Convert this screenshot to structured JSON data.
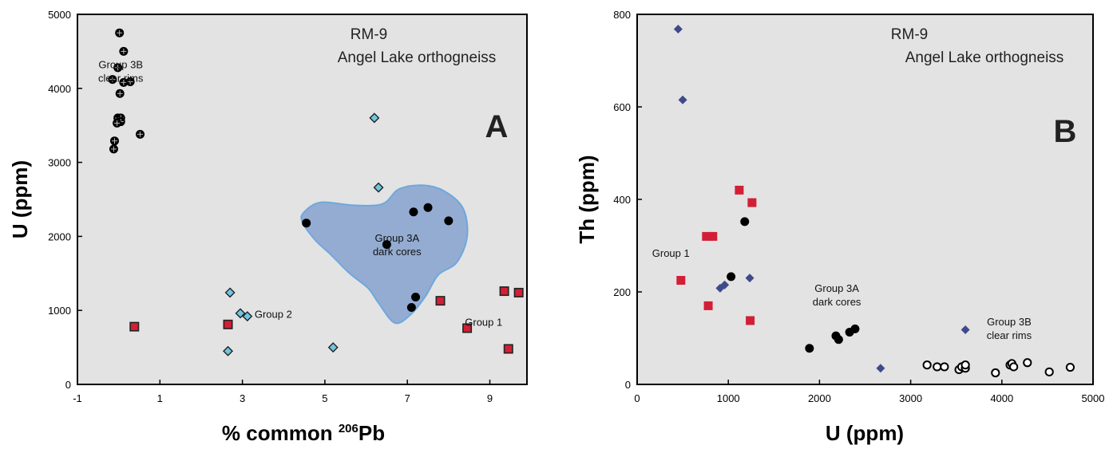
{
  "colors": {
    "plot_background": "#e3e3e3",
    "group1": "#d21f35",
    "group2_A": "#6fc6e2",
    "group2_B": "#404a8a",
    "group3": "#000000",
    "group3a_field": "#7e9ccd"
  },
  "chart_data": [
    {
      "panel": "A",
      "type": "scatter",
      "title": "RM-9",
      "subtitle": "Angel Lake orthogneiss",
      "panel_letter": "A",
      "xlabel": "% common ²⁰⁶Pb",
      "ylabel": "U (ppm)",
      "xlim": [
        -1,
        9.9
      ],
      "ylim": [
        0,
        5000
      ],
      "xticks": [
        -1,
        1,
        3,
        5,
        7,
        9
      ],
      "yticks": [
        0,
        1000,
        2000,
        3000,
        4000,
        5000
      ],
      "grid": false,
      "annotations": [
        {
          "lines": [
            "Group 3B",
            "clear rims"
          ],
          "x": 0.05,
          "y": 4270
        },
        {
          "lines": [
            "Group 2"
          ],
          "x": 3.75,
          "y": 900
        },
        {
          "lines": [
            "Group 3A",
            "dark cores"
          ],
          "x": 6.75,
          "y": 1930
        },
        {
          "lines": [
            "Group 1"
          ],
          "x": 8.85,
          "y": 790
        }
      ],
      "group3a_field": [
        [
          4.5,
          2330
        ],
        [
          4.9,
          2460
        ],
        [
          5.7,
          2420
        ],
        [
          6.4,
          2440
        ],
        [
          6.8,
          2640
        ],
        [
          7.4,
          2690
        ],
        [
          7.9,
          2610
        ],
        [
          8.35,
          2380
        ],
        [
          8.45,
          2000
        ],
        [
          8.2,
          1650
        ],
        [
          7.75,
          1480
        ],
        [
          7.45,
          1200
        ],
        [
          7.1,
          955
        ],
        [
          6.7,
          830
        ],
        [
          6.3,
          1100
        ],
        [
          6.05,
          1300
        ],
        [
          5.6,
          1500
        ],
        [
          5.15,
          1750
        ],
        [
          4.75,
          1960
        ],
        [
          4.45,
          2200
        ]
      ],
      "series": [
        {
          "marker": "crossed-circle",
          "points": [
            [
              0.02,
              4750
            ],
            [
              0.12,
              4500
            ],
            [
              -0.02,
              4280
            ],
            [
              -0.15,
              4120
            ],
            [
              0.12,
              4080
            ],
            [
              0.28,
              4090
            ],
            [
              0.03,
              3930
            ],
            [
              -0.02,
              3600
            ],
            [
              0.05,
              3600
            ],
            [
              0.05,
              3550
            ],
            [
              -0.04,
              3530
            ],
            [
              0.52,
              3380
            ],
            [
              -0.1,
              3290
            ],
            [
              -0.12,
              3180
            ]
          ]
        },
        {
          "marker": "diamond",
          "points": [
            [
              6.2,
              3600
            ],
            [
              6.3,
              2660
            ],
            [
              2.7,
              1240
            ],
            [
              2.95,
              960
            ],
            [
              3.12,
              920
            ],
            [
              2.65,
              450
            ],
            [
              5.2,
              500
            ]
          ]
        },
        {
          "marker": "filled-circle",
          "points": [
            [
              7.5,
              2390
            ],
            [
              7.15,
              2330
            ],
            [
              4.55,
              2180
            ],
            [
              8.0,
              2210
            ],
            [
              6.5,
              1890
            ],
            [
              7.2,
              1180
            ],
            [
              7.1,
              1040
            ]
          ]
        },
        {
          "marker": "square",
          "points": [
            [
              0.38,
              780
            ],
            [
              2.65,
              810
            ],
            [
              7.8,
              1130
            ],
            [
              8.45,
              760
            ],
            [
              9.35,
              1260
            ],
            [
              9.7,
              1240
            ],
            [
              9.45,
              480
            ]
          ]
        }
      ]
    },
    {
      "panel": "B",
      "type": "scatter",
      "title": "RM-9",
      "subtitle": "Angel Lake orthogneiss",
      "panel_letter": "B",
      "xlabel": "U (ppm)",
      "ylabel": "Th (ppm)",
      "xlim": [
        0,
        5000
      ],
      "ylim": [
        0,
        800
      ],
      "xticks": [
        0,
        1000,
        2000,
        3000,
        4000,
        5000
      ],
      "yticks": [
        0,
        200,
        400,
        600,
        800
      ],
      "grid": false,
      "annotations": [
        {
          "lines": [
            "Group 1"
          ],
          "x": 370,
          "y": 276
        },
        {
          "lines": [
            "Group 3A",
            "dark cores"
          ],
          "x": 2190,
          "y": 200
        },
        {
          "lines": [
            "Group 3B",
            "clear rims"
          ],
          "x": 4080,
          "y": 128
        }
      ],
      "series": [
        {
          "marker": "diamond",
          "points": [
            [
              450,
              768
            ],
            [
              500,
              615
            ],
            [
              910,
              208
            ],
            [
              960,
              215
            ],
            [
              1235,
              230
            ],
            [
              2670,
              35
            ],
            [
              3600,
              118
            ]
          ]
        },
        {
          "marker": "square",
          "points": [
            [
              1120,
              420
            ],
            [
              1260,
              393
            ],
            [
              760,
              320
            ],
            [
              830,
              320
            ],
            [
              480,
              225
            ],
            [
              780,
              170
            ],
            [
              1240,
              138
            ]
          ]
        },
        {
          "marker": "filled-circle",
          "points": [
            [
              1180,
              352
            ],
            [
              1030,
              233
            ],
            [
              1890,
              78
            ],
            [
              2180,
              105
            ],
            [
              2210,
              97
            ],
            [
              2330,
              113
            ],
            [
              2390,
              120
            ]
          ]
        },
        {
          "marker": "open-circle",
          "points": [
            [
              3180,
              42
            ],
            [
              3290,
              38
            ],
            [
              3370,
              38
            ],
            [
              3530,
              32
            ],
            [
              3560,
              38
            ],
            [
              3600,
              35
            ],
            [
              3600,
              42
            ],
            [
              3930,
              25
            ],
            [
              4090,
              42
            ],
            [
              4110,
              45
            ],
            [
              4130,
              38
            ],
            [
              4280,
              47
            ],
            [
              4520,
              27
            ],
            [
              4750,
              37
            ]
          ]
        }
      ]
    }
  ]
}
